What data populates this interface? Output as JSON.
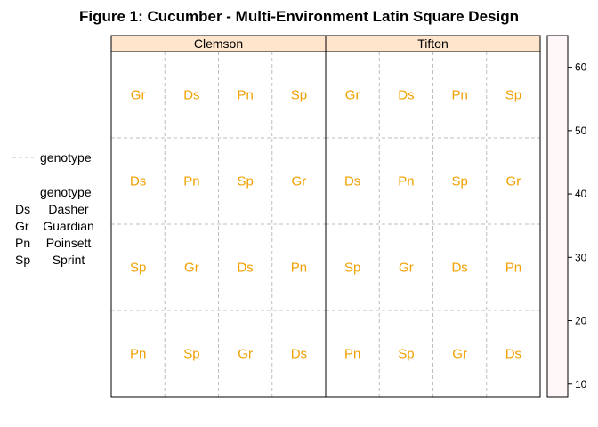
{
  "chart_data": {
    "type": "heatmap",
    "title": "Figure 1: Cucumber - Multi-Environment Latin Square Design",
    "panels": [
      {
        "name": "Clemson",
        "rows": [
          [
            "Gr",
            "Ds",
            "Pn",
            "Sp"
          ],
          [
            "Ds",
            "Pn",
            "Sp",
            "Gr"
          ],
          [
            "Sp",
            "Gr",
            "Ds",
            "Pn"
          ],
          [
            "Pn",
            "Sp",
            "Gr",
            "Ds"
          ]
        ]
      },
      {
        "name": "Tifton",
        "rows": [
          [
            "Gr",
            "Ds",
            "Pn",
            "Sp"
          ],
          [
            "Ds",
            "Pn",
            "Sp",
            "Gr"
          ],
          [
            "Sp",
            "Gr",
            "Ds",
            "Pn"
          ],
          [
            "Pn",
            "Sp",
            "Gr",
            "Ds"
          ]
        ]
      }
    ],
    "colorkey": {
      "ticks": [
        10,
        20,
        30,
        40,
        50,
        60
      ],
      "range": [
        8,
        65
      ]
    },
    "legend": {
      "line_label": "genotype",
      "key_title": "genotype",
      "entries": [
        {
          "code": "Ds",
          "name": "Dasher"
        },
        {
          "code": "Gr",
          "name": "Guardian"
        },
        {
          "code": "Pn",
          "name": "Poinsett"
        },
        {
          "code": "Sp",
          "name": "Sprint"
        }
      ],
      "placement": "left"
    },
    "colors": {
      "cell_text": "#f0a000",
      "strip_bg": "#ffe5cc",
      "grid": "#bebebe",
      "colorkey_fill": "#fff7f7"
    }
  }
}
